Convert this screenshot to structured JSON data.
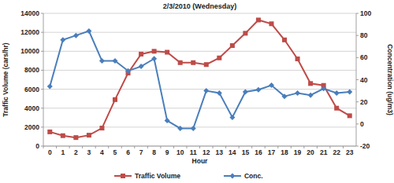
{
  "chart_data": {
    "type": "line",
    "title": "2/3/2010 (Wednesday)",
    "x_label": "Hour",
    "y_label": "Traffic Volume (cars/hr)",
    "y2_label": "Concentration (ug/m3)",
    "categories": [
      "0",
      "1",
      "2",
      "3",
      "4",
      "5",
      "6",
      "7",
      "8",
      "9",
      "10",
      "11",
      "12",
      "13",
      "14",
      "15",
      "16",
      "17",
      "18",
      "19",
      "20",
      "21",
      "22",
      "23"
    ],
    "series": [
      {
        "name": "Traffic Volume",
        "color": "#be4b48",
        "marker": "square",
        "values": [
          1500,
          1100,
          900,
          1150,
          1900,
          4900,
          7700,
          9700,
          10000,
          9900,
          8800,
          8800,
          8600,
          9300,
          10600,
          11900,
          13300,
          12900,
          11200,
          9200,
          6600,
          6400,
          4000,
          3200
        ]
      },
      {
        "name": "Conc.",
        "color": "#4a7ebb",
        "marker": "diamond",
        "axis": "y2",
        "values": [
          34,
          76,
          80,
          84,
          57,
          57,
          48,
          52,
          59,
          3,
          -4,
          -4,
          30,
          28,
          6,
          29,
          31,
          35,
          25,
          28,
          26,
          32,
          28,
          29
        ]
      }
    ],
    "ylim": [
      0,
      14000
    ],
    "yticks": [
      0,
      2000,
      4000,
      6000,
      8000,
      10000,
      12000,
      14000
    ],
    "y2lim": [
      -20,
      100
    ],
    "y2ticks": [
      -20,
      0,
      20,
      40,
      60,
      80,
      100
    ],
    "grid": true,
    "legend": "bottom"
  }
}
